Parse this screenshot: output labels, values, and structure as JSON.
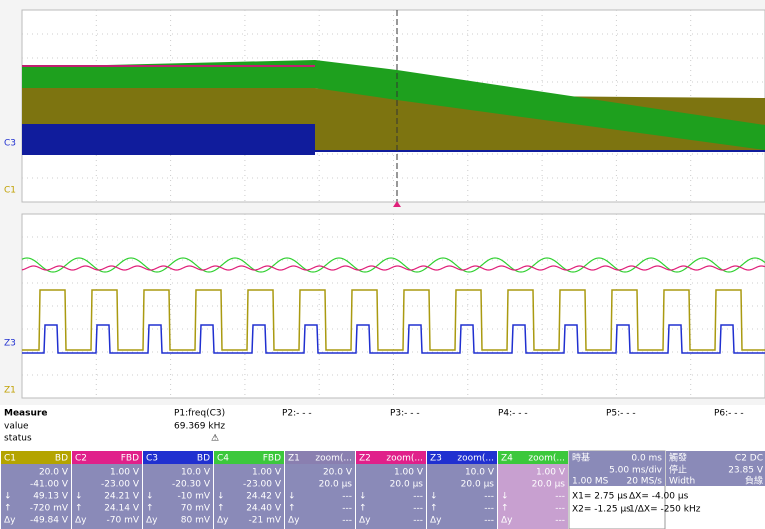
{
  "grid_markers": {
    "top": [
      "C3",
      "C1"
    ],
    "bottom": [
      "Z3",
      "Z1"
    ]
  },
  "measure": {
    "title": "Measure",
    "row_labels": [
      "value",
      "status"
    ],
    "params": [
      "P1:freq(C3)",
      "P2:- - -",
      "P3:- - -",
      "P4:- - -",
      "P5:- - -",
      "P6:- - -"
    ],
    "values": [
      "69.369 kHz"
    ]
  },
  "channels": [
    {
      "name": "C1",
      "badge": "BD",
      "color": "#b4a400",
      "body": "#8a8ab8",
      "scale": "20.0 V",
      "offset": "-41.00 V",
      "cursors": [
        {
          "sym": "↓",
          "value": "49.13 V"
        },
        {
          "sym": "↑",
          "value": "-720 mV"
        },
        {
          "sym": "Δy",
          "value": "-49.84 V"
        }
      ]
    },
    {
      "name": "C2",
      "badge": "FBD",
      "color": "#e0208a",
      "body": "#8a8ab8",
      "scale": "1.00 V",
      "offset": "-23.00 V",
      "cursors": [
        {
          "sym": "↓",
          "value": "24.21 V"
        },
        {
          "sym": "↑",
          "value": "24.14 V"
        },
        {
          "sym": "Δy",
          "value": "-70 mV"
        }
      ]
    },
    {
      "name": "C3",
      "badge": "BD",
      "color": "#2030d0",
      "body": "#8a8ab8",
      "scale": "10.0 V",
      "offset": "-20.30 V",
      "cursors": [
        {
          "sym": "↓",
          "value": "-10 mV"
        },
        {
          "sym": "↑",
          "value": "70 mV"
        },
        {
          "sym": "Δy",
          "value": "80 mV"
        }
      ]
    },
    {
      "name": "C4",
      "badge": "FBD",
      "color": "#3cc83c",
      "body": "#8a8ab8",
      "scale": "1.00 V",
      "offset": "-23.00 V",
      "cursors": [
        {
          "sym": "↓",
          "value": "24.42 V"
        },
        {
          "sym": "↑",
          "value": "24.40 V"
        },
        {
          "sym": "Δy",
          "value": "-21 mV"
        }
      ]
    },
    {
      "name": "Z1",
      "badge": "zoom(...",
      "color": "#8a7fb0",
      "body": "#8a8ab8",
      "scale": "20.0 V",
      "offset": "20.0 µs",
      "cursors": [
        {
          "sym": "↓",
          "value": "---"
        },
        {
          "sym": "↑",
          "value": "---"
        },
        {
          "sym": "Δy",
          "value": "---"
        }
      ]
    },
    {
      "name": "Z2",
      "badge": "zoom(...",
      "color": "#e0208a",
      "body": "#8a8ab8",
      "scale": "1.00 V",
      "offset": "20.0 µs",
      "cursors": [
        {
          "sym": "↓",
          "value": "---"
        },
        {
          "sym": "↑",
          "value": "---"
        },
        {
          "sym": "Δy",
          "value": "---"
        }
      ]
    },
    {
      "name": "Z3",
      "badge": "zoom(...",
      "color": "#2030d0",
      "body": "#8a8ab8",
      "scale": "10.0 V",
      "offset": "20.0 µs",
      "cursors": [
        {
          "sym": "↓",
          "value": "---"
        },
        {
          "sym": "↑",
          "value": "---"
        },
        {
          "sym": "Δy",
          "value": "---"
        }
      ]
    },
    {
      "name": "Z4",
      "badge": "zoom(...",
      "color": "#3cc83c",
      "body": "#c8a0d0",
      "scale": "1.00 V",
      "offset": "20.0 µs",
      "cursors": [
        {
          "sym": "↓",
          "value": "---"
        },
        {
          "sym": "↑",
          "value": "---"
        },
        {
          "sym": "Δy",
          "value": "---"
        }
      ]
    }
  ],
  "timebase": {
    "title": "時基",
    "delay": "0.0 ms",
    "rows": [
      [
        "5.00 ms/div"
      ],
      [
        "1.00 MS",
        "20 MS/s"
      ]
    ],
    "cursors": [
      [
        "X1= 2.75 µs",
        "ΔX= -4.00 µs"
      ],
      [
        "X2= -1.25 µs",
        "1/ΔX= -250 kHz"
      ]
    ]
  },
  "trigger": {
    "title": "觸發",
    "badge": "C2 DC",
    "rows": [
      [
        "停止",
        "23.85 V"
      ],
      [
        "Width",
        "負緣"
      ]
    ]
  }
}
